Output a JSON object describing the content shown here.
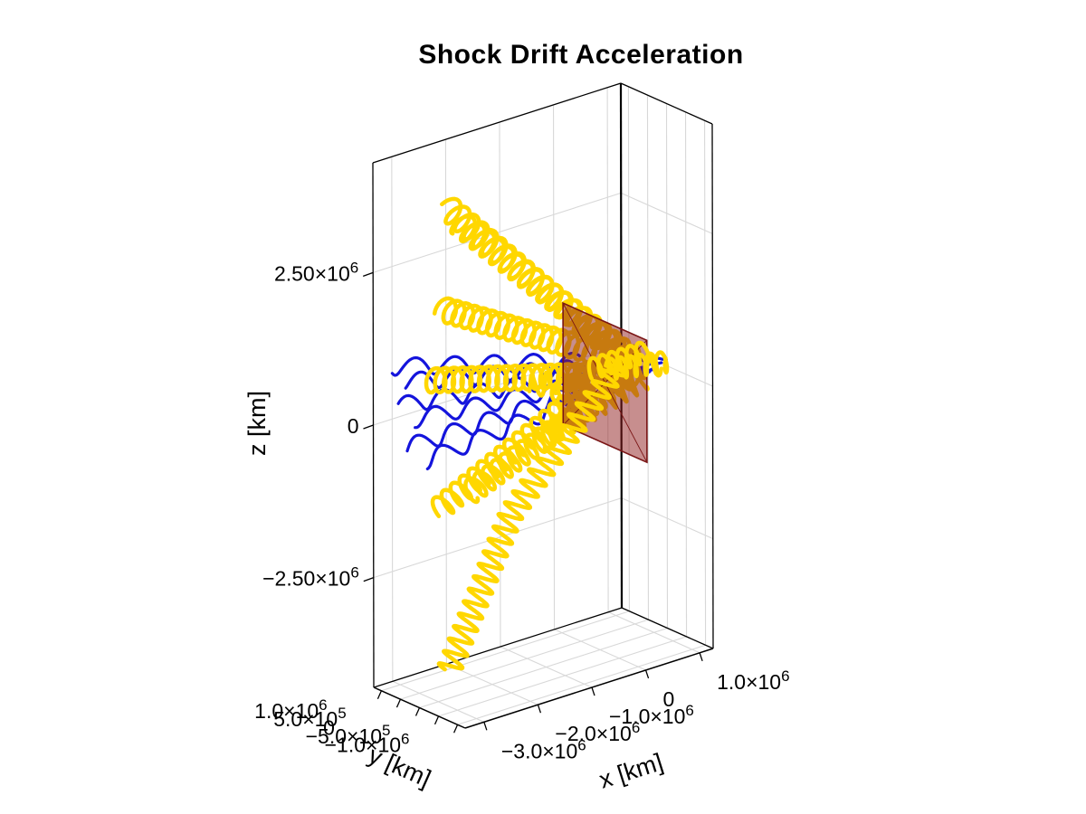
{
  "chart_data": {
    "type": "line3d",
    "title": "Shock Drift Acceleration",
    "background": "#FFFFFF",
    "grid_color": "#D8D8D8",
    "edge_color": "#000000",
    "axes": {
      "x": {
        "label": "x [km]",
        "range": [
          -3350000,
          1250000
        ],
        "ticks": [
          {
            "v": 1000000,
            "label": "1.0×10^6"
          },
          {
            "v": 0,
            "label": "0"
          },
          {
            "v": -1000000,
            "label": "−1.0×10^6"
          },
          {
            "v": -2000000,
            "label": "−2.0×10^6"
          },
          {
            "v": -3000000,
            "label": "−3.0×10^6"
          }
        ]
      },
      "y": {
        "label": "y [km]",
        "range": [
          -1200000,
          1200000
        ],
        "ticks": [
          {
            "v": 1000000,
            "label": "1.0×10^6"
          },
          {
            "v": 500000,
            "label": "5.0×10^5"
          },
          {
            "v": 0,
            "label": "0"
          },
          {
            "v": -500000,
            "label": "−5.0×10^5"
          },
          {
            "v": -1000000,
            "label": "−1.0×10^6"
          }
        ]
      },
      "z": {
        "label": "z [km]",
        "range": [
          -4300000,
          4300000
        ],
        "ticks": [
          {
            "v": 2500000,
            "label": "2.50×10^6"
          },
          {
            "v": 0,
            "label": "0"
          },
          {
            "v": -2500000,
            "label": "−2.50×10^6"
          }
        ]
      }
    },
    "shock_plane": {
      "name": "shock-front",
      "x": 100000,
      "y_range": [
        -1100000,
        1100000
      ],
      "z_range": [
        -950000,
        1050000
      ],
      "fill": "#8F1D1D",
      "fill_opacity": 0.5,
      "edge_color": "#7A1515"
    },
    "series_styles": {
      "ion": {
        "color": "#FFD700",
        "width": 4.5
      },
      "electron": {
        "color": "#1414DC",
        "width": 3.2
      }
    },
    "trajectories": [
      {
        "id": "ion-1",
        "species": "ion",
        "gyroradius_km": 185000,
        "turns": 20,
        "phase": 0.0,
        "front": false,
        "taper": false,
        "waypoints_km": [
          [
            500000,
            -100000,
            280000
          ],
          [
            -2600000,
            300000,
            3600000
          ]
        ]
      },
      {
        "id": "ion-2",
        "species": "ion",
        "gyroradius_km": 185000,
        "turns": 18,
        "phase": 1.7,
        "front": false,
        "taper": false,
        "waypoints_km": [
          [
            450000,
            -250000,
            380000
          ],
          [
            -2450000,
            200000,
            3330000
          ]
        ]
      },
      {
        "id": "ion-3",
        "species": "ion",
        "gyroradius_km": 185000,
        "turns": 21,
        "phase": 0.6,
        "front": false,
        "taper": false,
        "waypoints_km": [
          [
            500000,
            0,
            300000
          ],
          [
            -2900000,
            0,
            2100000
          ]
        ]
      },
      {
        "id": "ion-4",
        "species": "ion",
        "gyroradius_km": 185000,
        "turns": 23,
        "phase": 2.4,
        "front": false,
        "taper": false,
        "waypoints_km": [
          [
            500000,
            -150000,
            120000
          ],
          [
            -3200000,
            -100000,
            1050000
          ]
        ]
      },
      {
        "id": "ion-5",
        "species": "ion",
        "gyroradius_km": 185000,
        "turns": 20,
        "phase": 1.1,
        "front": false,
        "taper": false,
        "waypoints_km": [
          [
            400000,
            100000,
            220000
          ],
          [
            -2920000,
            100000,
            -1200000
          ]
        ]
      },
      {
        "id": "ion-6",
        "species": "ion",
        "gyroradius_km": 185000,
        "turns": 19,
        "phase": 2.9,
        "front": false,
        "taper": false,
        "waypoints_km": [
          [
            450000,
            -200000,
            150000
          ],
          [
            -2700000,
            -400000,
            -850000
          ]
        ]
      },
      {
        "id": "ion-7",
        "species": "ion",
        "gyroradius_km": 185000,
        "turns": 26,
        "phase": 0.3,
        "front": true,
        "taper": false,
        "waypoints_km": [
          [
            400000,
            100000,
            200000
          ],
          [
            -1500000,
            200000,
            -1700000
          ],
          [
            -2600000,
            300000,
            -4000000
          ]
        ]
      },
      {
        "id": "ion-8",
        "species": "ion",
        "gyroradius_km": 160000,
        "turns": 6,
        "phase": 0.0,
        "front": true,
        "taper": false,
        "waypoints_km": [
          [
            1000000,
            -400000,
            250000
          ],
          [
            100000,
            -100000,
            300000
          ]
        ]
      },
      {
        "id": "ion-9",
        "species": "ion",
        "gyroradius_km": 160000,
        "turns": 6,
        "phase": 1.5,
        "front": true,
        "taper": false,
        "waypoints_km": [
          [
            950000,
            100000,
            300000
          ],
          [
            50000,
            300000,
            200000
          ]
        ]
      },
      {
        "id": "ion-10",
        "species": "ion",
        "gyroradius_km": 170000,
        "turns": 9,
        "phase": 0.8,
        "front": false,
        "taper": false,
        "waypoints_km": [
          [
            700000,
            -600000,
            350000
          ],
          [
            -900000,
            600000,
            100000
          ]
        ]
      },
      {
        "id": "ion-11",
        "species": "ion",
        "gyroradius_km": 170000,
        "turns": 10,
        "phase": 2.2,
        "front": false,
        "taper": false,
        "waypoints_km": [
          [
            750000,
            400000,
            150000
          ],
          [
            -1100000,
            -500000,
            350000
          ]
        ]
      },
      {
        "id": "ion-12",
        "species": "ion",
        "gyroradius_km": 170000,
        "turns": 9,
        "phase": 1.4,
        "front": false,
        "taper": false,
        "waypoints_km": [
          [
            600000,
            -300000,
            50000
          ],
          [
            -800000,
            200000,
            -600000
          ]
        ]
      },
      {
        "id": "electron-1",
        "species": "electron",
        "gyroradius_km": 130000,
        "turns": 7,
        "phase": 0.5,
        "front": false,
        "taper": true,
        "waypoints_km": [
          [
            -3300000,
            800000,
            1050000
          ],
          [
            600000,
            -900000,
            550000
          ]
        ]
      },
      {
        "id": "electron-2",
        "species": "electron",
        "gyroradius_km": 130000,
        "turns": 7,
        "phase": 1.9,
        "front": false,
        "taper": true,
        "waypoints_km": [
          [
            -3000000,
            820000,
            720000
          ],
          [
            550000,
            -850000,
            500000
          ]
        ]
      },
      {
        "id": "electron-3",
        "species": "electron",
        "gyroradius_km": 130000,
        "turns": 7,
        "phase": 3.0,
        "front": false,
        "taper": true,
        "waypoints_km": [
          [
            -3200000,
            700000,
            420000
          ],
          [
            500000,
            -700000,
            450000
          ]
        ]
      },
      {
        "id": "electron-4",
        "species": "electron",
        "gyroradius_km": 130000,
        "turns": 6,
        "phase": 0.9,
        "front": false,
        "taper": true,
        "waypoints_km": [
          [
            -2900000,
            780000,
            80000
          ],
          [
            450000,
            -780000,
            400000
          ]
        ]
      },
      {
        "id": "electron-5",
        "species": "electron",
        "gyroradius_km": 130000,
        "turns": 7,
        "phase": 2.3,
        "front": false,
        "taper": true,
        "waypoints_km": [
          [
            -3100000,
            650000,
            -280000
          ],
          [
            550000,
            -650000,
            350000
          ]
        ]
      },
      {
        "id": "electron-6",
        "species": "electron",
        "gyroradius_km": 130000,
        "turns": 6,
        "phase": 1.2,
        "front": false,
        "taper": true,
        "waypoints_km": [
          [
            -2750000,
            700000,
            -620000
          ],
          [
            500000,
            -600000,
            300000
          ]
        ]
      }
    ]
  }
}
